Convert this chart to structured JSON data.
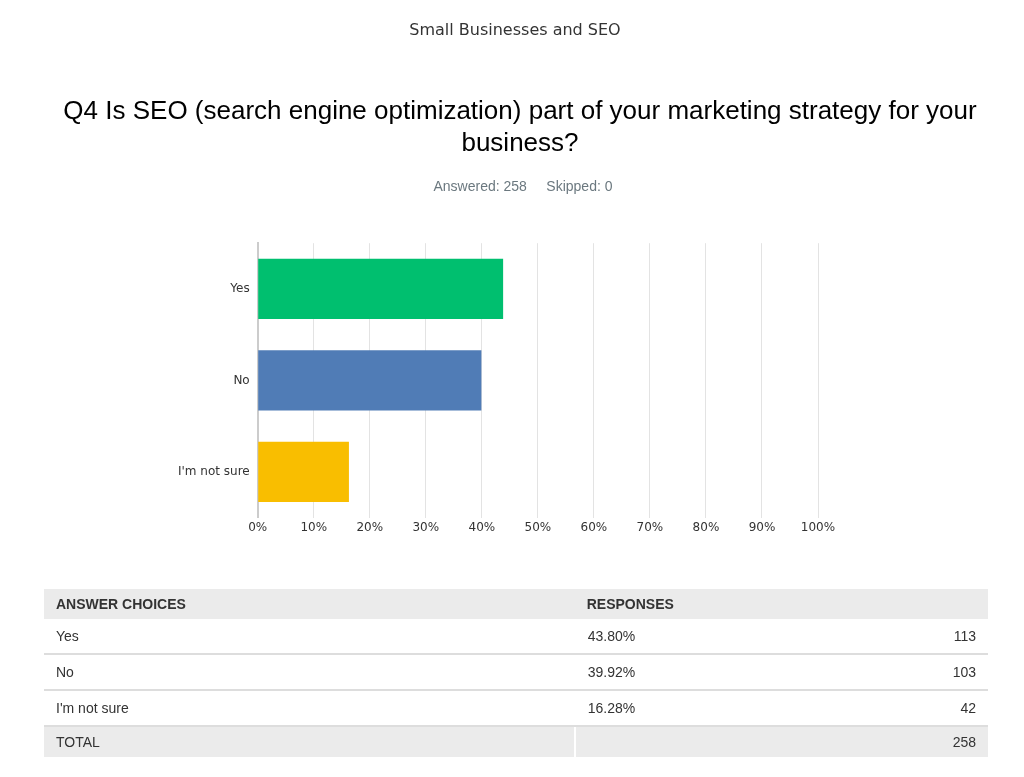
{
  "chart_data": {
    "type": "bar",
    "orientation": "horizontal",
    "title": "Q4 Is SEO (search engine optimization) part of your marketing strategy for your business?",
    "subtitle": "Answered: 258     Skipped: 0",
    "categories": [
      "Yes",
      "No",
      "I'm not sure"
    ],
    "values": [
      43.8,
      39.92,
      16.28
    ],
    "colors": [
      "#00bf6f",
      "#507cb6",
      "#f9be00"
    ],
    "xlim": [
      0,
      100
    ],
    "xticks": [
      {
        "value": 0,
        "label": "0%"
      },
      {
        "value": 10,
        "label": "10%"
      },
      {
        "value": 20,
        "label": "20%"
      },
      {
        "value": 30,
        "label": "30%"
      },
      {
        "value": 40,
        "label": "40%"
      },
      {
        "value": 50,
        "label": "50%"
      },
      {
        "value": 60,
        "label": "60%"
      },
      {
        "value": 70,
        "label": "70%"
      },
      {
        "value": 80,
        "label": "80%"
      },
      {
        "value": 90,
        "label": "90%"
      },
      {
        "value": 100,
        "label": "100%"
      }
    ],
    "grid": "x",
    "legend": false,
    "annotations": [
      "Small Businesses and SEO",
      "ANSWER CHOICES",
      "RESPONSES",
      "43.80%",
      "113",
      "39.92%",
      "103",
      "16.28%",
      "42",
      "TOTAL",
      "258"
    ]
  }
}
